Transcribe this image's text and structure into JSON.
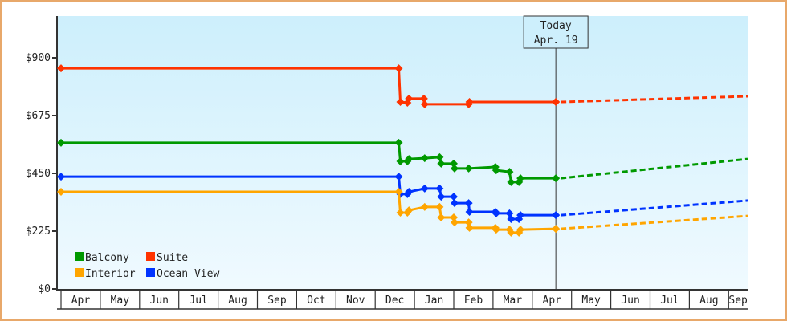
{
  "chart_data": {
    "type": "line",
    "title": "",
    "xlabel": "",
    "ylabel": "",
    "ylim": [
      0,
      1060
    ],
    "grid": false,
    "legend_position": "bottom-left inside plot",
    "y_ticks": [
      {
        "label": "$0",
        "value": 0
      },
      {
        "label": "$225",
        "value": 225
      },
      {
        "label": "$450",
        "value": 450
      },
      {
        "label": "$675",
        "value": 675
      },
      {
        "label": "$900",
        "value": 900
      }
    ],
    "x_months": [
      "Apr",
      "May",
      "Jun",
      "Jul",
      "Aug",
      "Sep",
      "Oct",
      "Nov",
      "Dec",
      "Jan",
      "Feb",
      "Mar",
      "Apr",
      "May",
      "Jun",
      "Jul",
      "Aug",
      "Sep"
    ],
    "today_marker": {
      "line1": "Today",
      "line2": "Apr. 19",
      "month_index": 12.6
    },
    "series": [
      {
        "name": "Suite",
        "color": "#ff3300",
        "historical": [
          [
            0,
            859
          ],
          [
            8.6,
            859
          ],
          [
            8.64,
            728
          ],
          [
            8.82,
            725
          ],
          [
            8.86,
            741
          ],
          [
            9.24,
            741
          ],
          [
            9.26,
            719
          ],
          [
            10.38,
            719
          ],
          [
            10.4,
            728
          ],
          [
            12.6,
            728
          ]
        ],
        "forecast": [
          [
            12.6,
            728
          ],
          [
            17.65,
            750
          ]
        ]
      },
      {
        "name": "Balcony",
        "color": "#009900",
        "historical": [
          [
            0,
            569
          ],
          [
            8.6,
            569
          ],
          [
            8.64,
            497
          ],
          [
            8.82,
            497
          ],
          [
            8.86,
            506
          ],
          [
            9.26,
            509
          ],
          [
            9.64,
            513
          ],
          [
            9.68,
            488
          ],
          [
            10.0,
            488
          ],
          [
            10.02,
            469
          ],
          [
            10.38,
            469
          ],
          [
            11.06,
            475
          ],
          [
            11.08,
            462
          ],
          [
            11.42,
            456
          ],
          [
            11.46,
            416
          ],
          [
            11.66,
            416
          ],
          [
            11.7,
            431
          ],
          [
            12.6,
            431
          ]
        ],
        "forecast": [
          [
            12.6,
            431
          ],
          [
            17.65,
            506
          ]
        ]
      },
      {
        "name": "Ocean View",
        "color": "#0033ff",
        "historical": [
          [
            0,
            437
          ],
          [
            8.6,
            437
          ],
          [
            8.64,
            369
          ],
          [
            8.82,
            369
          ],
          [
            8.86,
            378
          ],
          [
            9.26,
            391
          ],
          [
            9.64,
            391
          ],
          [
            9.68,
            359
          ],
          [
            10.0,
            359
          ],
          [
            10.02,
            334
          ],
          [
            10.38,
            334
          ],
          [
            10.4,
            300
          ],
          [
            11.06,
            300
          ],
          [
            11.08,
            294
          ],
          [
            11.42,
            294
          ],
          [
            11.46,
            272
          ],
          [
            11.66,
            272
          ],
          [
            11.7,
            287
          ],
          [
            12.6,
            287
          ]
        ],
        "forecast": [
          [
            12.6,
            287
          ],
          [
            17.65,
            344
          ]
        ]
      },
      {
        "name": "Interior",
        "color": "#ffa500",
        "historical": [
          [
            0,
            378
          ],
          [
            8.6,
            378
          ],
          [
            8.64,
            297
          ],
          [
            8.82,
            297
          ],
          [
            8.86,
            306
          ],
          [
            9.26,
            319
          ],
          [
            9.64,
            319
          ],
          [
            9.68,
            278
          ],
          [
            10.0,
            278
          ],
          [
            10.02,
            259
          ],
          [
            10.38,
            259
          ],
          [
            10.4,
            238
          ],
          [
            11.06,
            238
          ],
          [
            11.08,
            231
          ],
          [
            11.42,
            231
          ],
          [
            11.46,
            219
          ],
          [
            11.66,
            219
          ],
          [
            11.7,
            231
          ],
          [
            12.6,
            234
          ]
        ],
        "forecast": [
          [
            12.6,
            234
          ],
          [
            17.65,
            284
          ]
        ]
      }
    ],
    "legend": [
      {
        "name": "Balcony",
        "color": "#009900"
      },
      {
        "name": "Suite",
        "color": "#ff3300"
      },
      {
        "name": "Interior",
        "color": "#ffa500"
      },
      {
        "name": "Ocean View",
        "color": "#0033ff"
      }
    ]
  },
  "layout_colors": {
    "frame_border": "#e8a86a",
    "plot_bg_top": "#cdeffc",
    "plot_bg_bottom": "#f0faff",
    "axis": "#333333",
    "text": "#222222"
  }
}
